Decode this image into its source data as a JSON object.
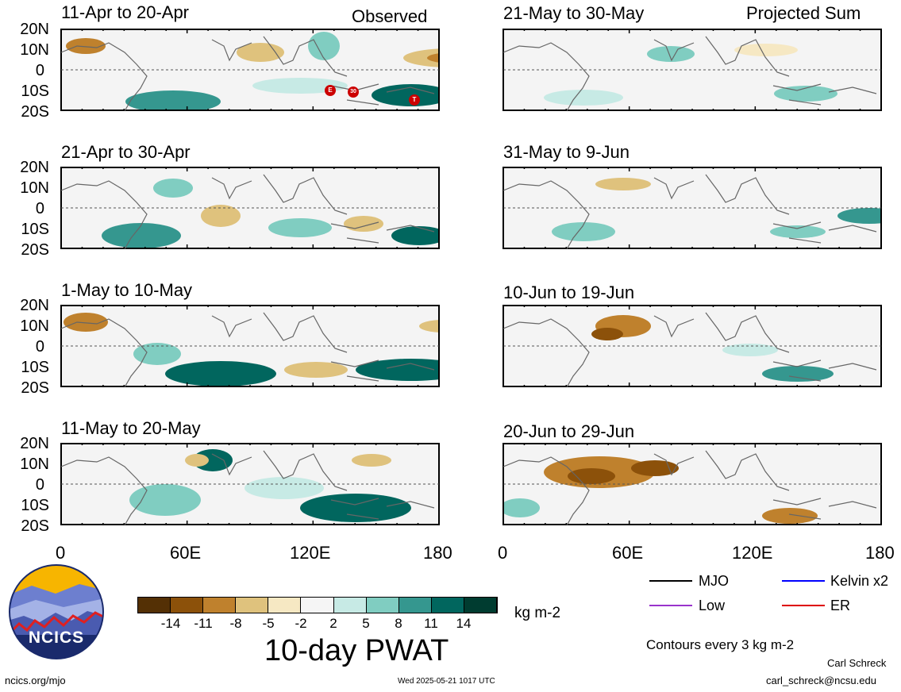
{
  "header": {
    "left_label": "Observed",
    "right_label": "Projected Sum"
  },
  "panels": [
    {
      "title": "11-Apr to 20-Apr"
    },
    {
      "title": "21-Apr to 30-Apr"
    },
    {
      "title": "1-May to 10-May"
    },
    {
      "title": "11-May to 20-May"
    },
    {
      "title": "21-May to 30-May"
    },
    {
      "title": "31-May to 9-Jun"
    },
    {
      "title": "10-Jun to 19-Jun"
    },
    {
      "title": "20-Jun to 29-Jun"
    }
  ],
  "lat_labels": [
    "20N",
    "10N",
    "0",
    "10S",
    "20S"
  ],
  "lon_labels": [
    "0",
    "60E",
    "120E",
    "180"
  ],
  "markers": [
    "E",
    "30",
    "T"
  ],
  "colorbar": {
    "title": "10-day PWAT",
    "units": "kg m-2",
    "tick_labels": [
      "-14",
      "-11",
      "-8",
      "-5",
      "-2",
      "2",
      "5",
      "8",
      "11",
      "14"
    ],
    "colors": [
      "#543005",
      "#8c510a",
      "#bf812d",
      "#dfc27d",
      "#f6e8c3",
      "#f5f5f5",
      "#c7eae5",
      "#80cdc1",
      "#35978f",
      "#01665e",
      "#003c30"
    ]
  },
  "legend": {
    "items": [
      {
        "label": "MJO",
        "color": "#000000"
      },
      {
        "label": "Kelvin x2",
        "color": "#0000ff"
      },
      {
        "label": "Low",
        "color": "#9933cc"
      },
      {
        "label": "ER",
        "color": "#dd0000"
      }
    ],
    "contour_note": "Contours every 3 kg m-2"
  },
  "footer": {
    "logo_text": "NCICS",
    "url": "ncics.org/mjo",
    "timestamp": "Wed 2025-05-21 1017 UTC",
    "author": "Carl Schreck",
    "email": "carl_schreck@ncsu.edu"
  }
}
